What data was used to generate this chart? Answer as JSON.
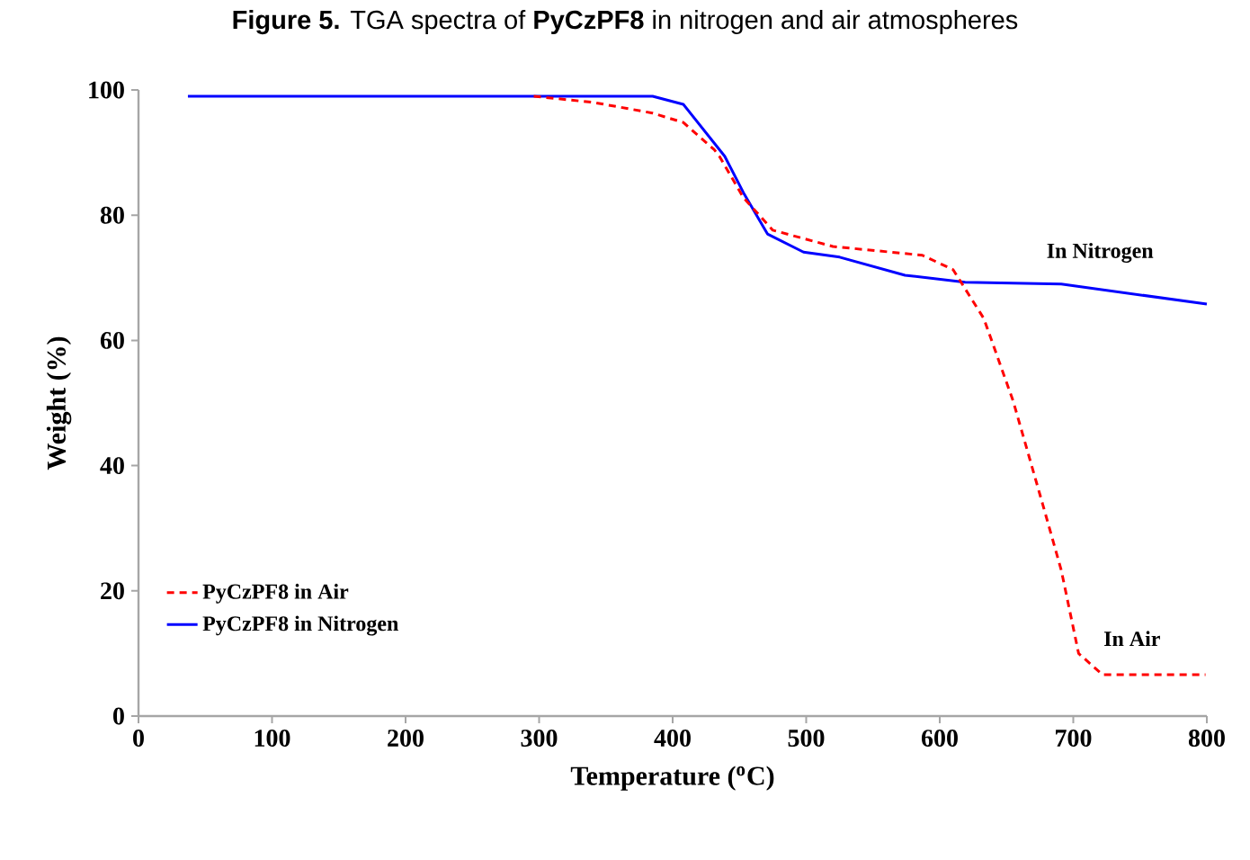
{
  "chart_data": {
    "type": "line",
    "title": "**Figure 5.** TGA spectra of **PyCzPF8** in nitrogen and air atmospheres",
    "xlabel": "Temperature  ($^{o}$C)",
    "ylabel": "Weight  (%)",
    "xlim": [
      0,
      800
    ],
    "ylim": [
      0,
      100
    ],
    "xticks": [
      0,
      100,
      200,
      300,
      400,
      500,
      600,
      700,
      800
    ],
    "yticks": [
      0,
      20,
      40,
      60,
      80,
      100
    ],
    "legend": "bottom left",
    "series": [
      {
        "name": "PyCzPF8 in Air",
        "color": "#ff0000",
        "line_style": "dashed",
        "x": [
          296,
          341,
          385,
          408,
          431,
          435,
          453,
          475,
          520,
          587,
          610,
          633,
          655,
          677,
          691,
          704,
          722,
          799
        ],
        "values": [
          99,
          98,
          96.3,
          94.8,
          90.5,
          89.4,
          82.8,
          77.6,
          75,
          73.6,
          71.3,
          63.5,
          50.3,
          33.9,
          23.3,
          10,
          6.6,
          6.6
        ]
      },
      {
        "name": "PyCzPF8 in Nitrogen",
        "color": "#0000ff",
        "line_style": "solid",
        "x": [
          37,
          200,
          385,
          408,
          439,
          453,
          471,
          498,
          525,
          574,
          619,
          691,
          800
        ],
        "values": [
          99,
          99,
          99,
          97.7,
          89.4,
          83.6,
          77,
          74.1,
          73.3,
          70.4,
          69.3,
          69,
          65.8
        ]
      }
    ],
    "annotations": [
      "In Nitrogen",
      "In Air"
    ]
  }
}
